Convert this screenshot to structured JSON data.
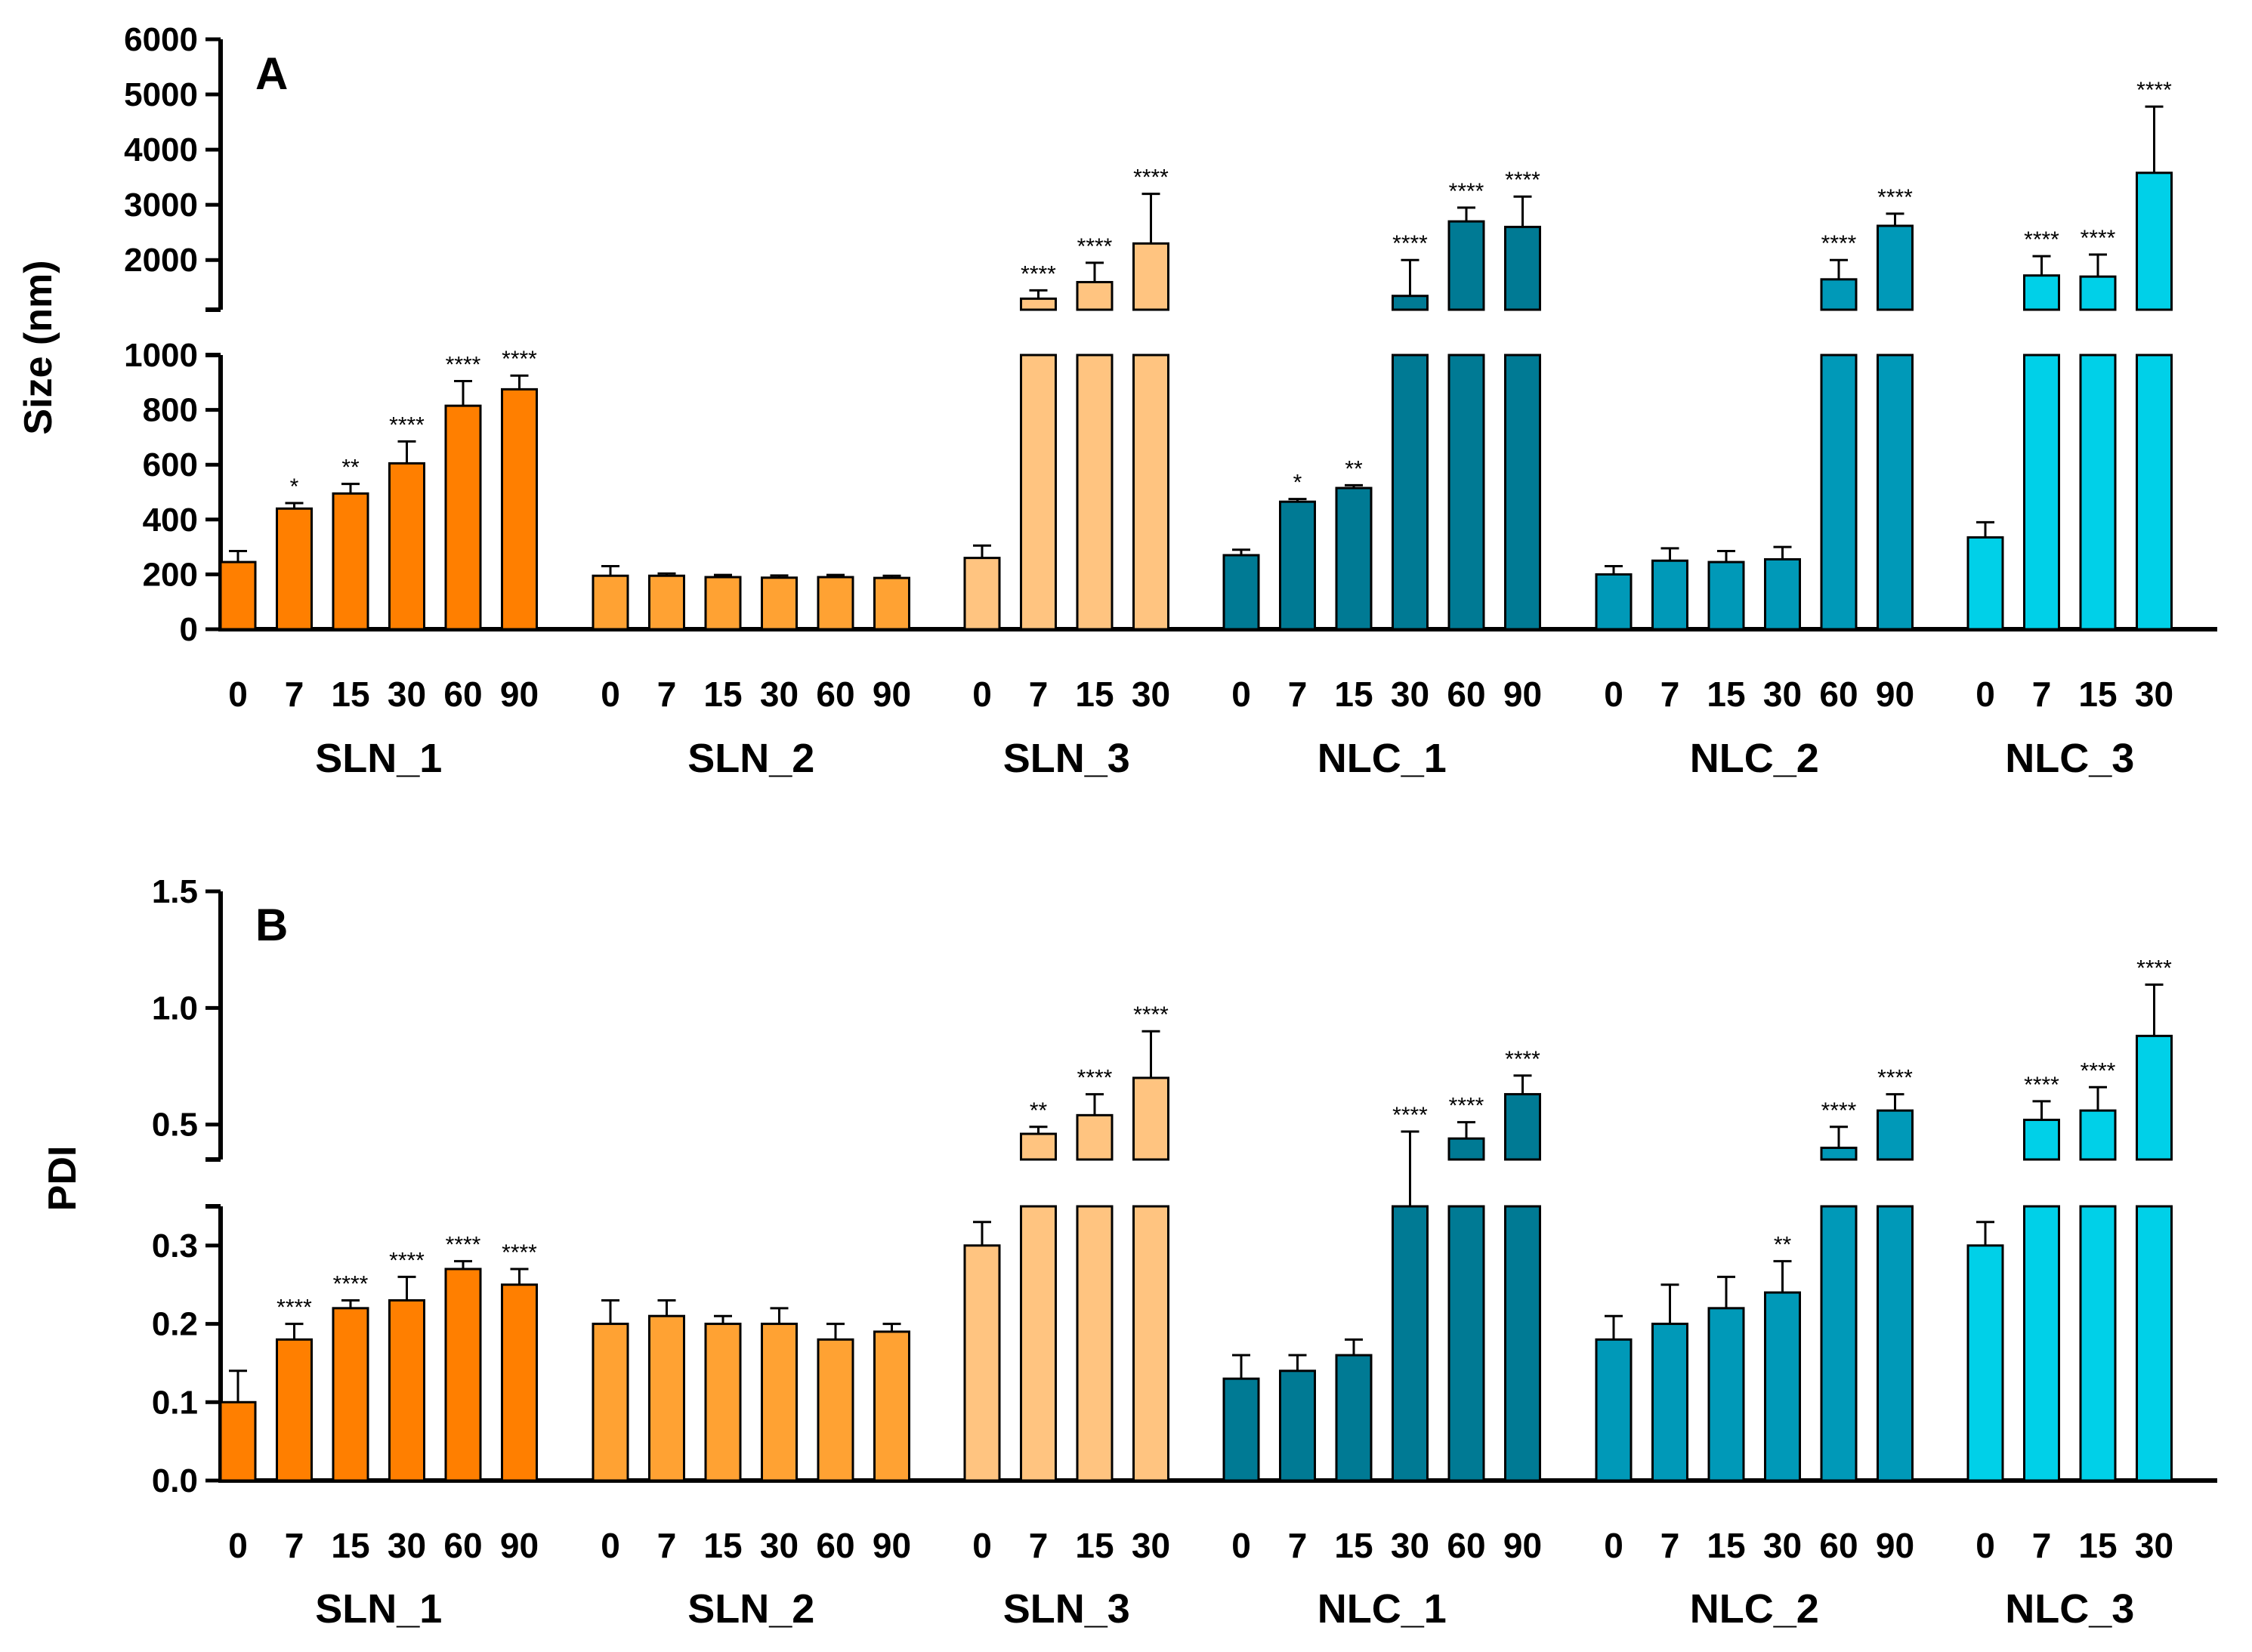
{
  "chart_data": [
    {
      "type": "bar",
      "panel_label": "A",
      "ylabel": "Size (nm)",
      "axis_break": {
        "lower_ylim": [
          0,
          1000
        ],
        "lower_ticks": [
          "0",
          "200",
          "400",
          "600",
          "800",
          "1000"
        ],
        "upper_ylim": [
          1100,
          6000
        ],
        "upper_ticks": [
          "2000",
          "3000",
          "4000",
          "5000",
          "6000"
        ]
      },
      "groups": [
        {
          "name": "SLN_1",
          "color": "#FF7F00",
          "days": [
            "0",
            "7",
            "15",
            "30",
            "60",
            "90"
          ],
          "values": [
            245,
            440,
            495,
            605,
            815,
            875
          ],
          "errors": [
            40,
            20,
            35,
            80,
            90,
            50
          ],
          "significance": [
            "",
            "*",
            "**",
            "****",
            "****",
            "****"
          ]
        },
        {
          "name": "SLN_2",
          "color": "#FFA233",
          "days": [
            "0",
            "7",
            "15",
            "30",
            "60",
            "90"
          ],
          "values": [
            195,
            195,
            190,
            188,
            190,
            187
          ],
          "errors": [
            35,
            8,
            8,
            8,
            8,
            8
          ],
          "significance": [
            "",
            "",
            "",
            "",
            "",
            ""
          ]
        },
        {
          "name": "SLN_3",
          "color": "#FFC480",
          "days": [
            "0",
            "7",
            "15",
            "30"
          ],
          "values": [
            260,
            1300,
            1600,
            2300
          ],
          "errors": [
            45,
            150,
            350,
            900
          ],
          "significance": [
            "",
            "****",
            "****",
            "****"
          ]
        },
        {
          "name": "NLC_1",
          "color": "#007A94",
          "days": [
            "0",
            "7",
            "15",
            "30",
            "60",
            "90"
          ],
          "values": [
            270,
            465,
            515,
            1350,
            2700,
            2600
          ],
          "errors": [
            20,
            10,
            10,
            650,
            250,
            550
          ],
          "significance": [
            "",
            "*",
            "**",
            "****",
            "****",
            "****"
          ]
        },
        {
          "name": "NLC_2",
          "color": "#0099B8",
          "days": [
            "0",
            "7",
            "15",
            "30",
            "60",
            "90"
          ],
          "values": [
            200,
            250,
            245,
            255,
            1650,
            2620
          ],
          "errors": [
            30,
            45,
            40,
            45,
            350,
            220
          ],
          "significance": [
            "",
            "",
            "",
            "",
            "****",
            "****"
          ]
        },
        {
          "name": "NLC_3",
          "color": "#00D0E8",
          "days": [
            "0",
            "7",
            "15",
            "30"
          ],
          "values": [
            335,
            1720,
            1700,
            3580
          ],
          "errors": [
            55,
            350,
            400,
            1200
          ],
          "significance": [
            "",
            "****",
            "****",
            "****"
          ]
        }
      ]
    },
    {
      "type": "bar",
      "panel_label": "B",
      "ylabel": "PDI",
      "axis_break": {
        "lower_ylim": [
          0,
          0.35
        ],
        "lower_ticks": [
          "0.0",
          "0.1",
          "0.2",
          "0.3"
        ],
        "upper_ylim": [
          0.35,
          1.5
        ],
        "upper_ticks": [
          "0.5",
          "1.0",
          "1.5"
        ]
      },
      "groups": [
        {
          "name": "SLN_1",
          "color": "#FF7F00",
          "days": [
            "0",
            "7",
            "15",
            "30",
            "60",
            "90"
          ],
          "values": [
            0.1,
            0.18,
            0.22,
            0.23,
            0.27,
            0.25
          ],
          "errors": [
            0.04,
            0.02,
            0.01,
            0.03,
            0.01,
            0.02
          ],
          "significance": [
            "",
            "****",
            "****",
            "****",
            "****",
            "****"
          ]
        },
        {
          "name": "SLN_2",
          "color": "#FFA233",
          "days": [
            "0",
            "7",
            "15",
            "30",
            "60",
            "90"
          ],
          "values": [
            0.2,
            0.21,
            0.2,
            0.2,
            0.18,
            0.19
          ],
          "errors": [
            0.03,
            0.02,
            0.01,
            0.02,
            0.02,
            0.01
          ],
          "significance": [
            "",
            "",
            "",
            "",
            "",
            ""
          ]
        },
        {
          "name": "SLN_3",
          "color": "#FFC480",
          "days": [
            "0",
            "7",
            "15",
            "30"
          ],
          "values": [
            0.3,
            0.46,
            0.54,
            0.7
          ],
          "errors": [
            0.03,
            0.03,
            0.09,
            0.2
          ],
          "significance": [
            "",
            "**",
            "****",
            "****"
          ]
        },
        {
          "name": "NLC_1",
          "color": "#007A94",
          "days": [
            "0",
            "7",
            "15",
            "30",
            "60",
            "90"
          ],
          "values": [
            0.13,
            0.14,
            0.16,
            0.35,
            0.44,
            0.63
          ],
          "errors": [
            0.03,
            0.02,
            0.02,
            0.12,
            0.07,
            0.08
          ],
          "significance": [
            "",
            "",
            "",
            "****",
            "****",
            "****"
          ]
        },
        {
          "name": "NLC_2",
          "color": "#0099B8",
          "days": [
            "0",
            "7",
            "15",
            "30",
            "60",
            "90"
          ],
          "values": [
            0.18,
            0.2,
            0.22,
            0.24,
            0.4,
            0.56
          ],
          "errors": [
            0.03,
            0.05,
            0.04,
            0.04,
            0.09,
            0.07
          ],
          "significance": [
            "",
            "",
            "",
            "**",
            "****",
            "****"
          ]
        },
        {
          "name": "NLC_3",
          "color": "#00D0E8",
          "days": [
            "0",
            "7",
            "15",
            "30"
          ],
          "values": [
            0.3,
            0.52,
            0.56,
            0.88
          ],
          "errors": [
            0.03,
            0.08,
            0.1,
            0.22
          ],
          "significance": [
            "",
            "****",
            "****",
            "****"
          ]
        }
      ]
    }
  ]
}
